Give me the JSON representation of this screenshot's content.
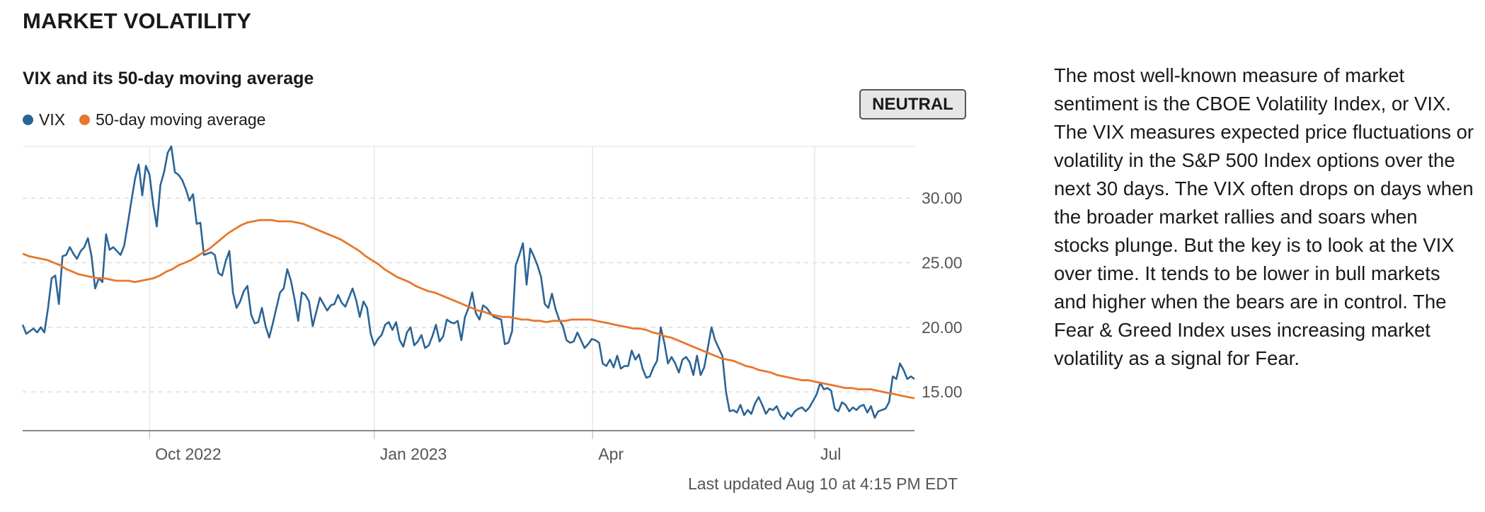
{
  "section_title": "MARKET VOLATILITY",
  "chart_title": "VIX and its 50-day moving average",
  "legend": [
    {
      "label": "VIX",
      "color": "#2b6496"
    },
    {
      "label": "50-day moving average",
      "color": "#e8772e"
    }
  ],
  "badge": "NEUTRAL",
  "last_updated": "Last updated Aug 10 at 4:15 PM EDT",
  "description": "The most well-known measure of market sentiment is the CBOE Volatility Index, or VIX. The VIX measures expected price fluctuations or volatility in the S&P 500 Index options over the next 30 days. The VIX often drops on days when the broader market rallies and soars when stocks plunge. But the key is to look at the VIX over time. It tends to be lower in bull markets and higher when the bears are in control. The Fear & Greed Index uses increasing market volatility as a signal for Fear.",
  "chart_data": {
    "type": "line",
    "x_ticks": [
      "Oct 2022",
      "Jan 2023",
      "Apr",
      "Jul"
    ],
    "y_ticks": [
      "15.00",
      "20.00",
      "25.00",
      "30.00"
    ],
    "y_tick_values": [
      15,
      20,
      25,
      30
    ],
    "ylim": [
      12,
      34
    ],
    "grid": true,
    "legend_placement": "top-left",
    "series": [
      {
        "name": "VIX",
        "color": "#2b6496",
        "values": [
          20.2,
          19.5,
          19.7,
          19.9,
          19.6,
          20.0,
          19.6,
          21.5,
          23.8,
          24.0,
          21.8,
          25.5,
          25.6,
          26.2,
          25.7,
          25.3,
          25.9,
          26.2,
          26.9,
          25.5,
          23.0,
          23.8,
          23.5,
          27.2,
          26.0,
          26.2,
          25.9,
          25.6,
          26.3,
          28.0,
          29.8,
          31.5,
          32.6,
          30.2,
          32.5,
          31.8,
          29.5,
          27.8,
          31.0,
          32.0,
          33.5,
          34.0,
          32.0,
          31.8,
          31.4,
          30.7,
          29.8,
          30.3,
          28.0,
          28.1,
          25.6,
          25.7,
          25.8,
          25.6,
          24.2,
          24.0,
          25.1,
          25.9,
          22.7,
          21.5,
          22.0,
          22.8,
          23.2,
          21.0,
          20.3,
          20.4,
          21.5,
          20.1,
          19.2,
          20.3,
          21.5,
          22.7,
          23.0,
          24.5,
          23.6,
          22.2,
          20.5,
          22.7,
          22.5,
          22.0,
          20.1,
          21.2,
          22.3,
          21.8,
          21.3,
          21.7,
          21.8,
          22.5,
          21.9,
          21.6,
          22.3,
          23.0,
          22.1,
          20.8,
          22.0,
          21.5,
          19.5,
          18.6,
          19.1,
          19.4,
          20.2,
          20.4,
          19.8,
          20.4,
          19.0,
          18.5,
          19.6,
          20.0,
          18.6,
          18.9,
          19.4,
          18.4,
          18.6,
          19.3,
          20.2,
          18.9,
          19.3,
          20.6,
          20.4,
          20.3,
          20.5,
          19.0,
          20.8,
          21.5,
          22.7,
          21.1,
          20.6,
          21.7,
          21.5,
          21.1,
          20.8,
          20.7,
          20.6,
          18.7,
          18.8,
          19.7,
          24.8,
          25.6,
          26.5,
          23.3,
          26.1,
          25.5,
          24.8,
          23.9,
          21.8,
          21.5,
          22.6,
          21.4,
          20.6,
          20.1,
          19.0,
          18.8,
          18.9,
          19.6,
          19.0,
          18.4,
          18.7,
          19.1,
          19.0,
          18.8,
          17.2,
          17.0,
          17.5,
          16.9,
          17.8,
          16.8,
          17.0,
          17.0,
          18.2,
          17.5,
          17.9,
          16.8,
          16.1,
          16.2,
          16.9,
          17.4,
          20.0,
          18.8,
          17.2,
          17.7,
          17.2,
          16.5,
          17.5,
          17.7,
          17.3,
          16.3,
          17.8,
          16.3,
          16.9,
          18.4,
          20.0,
          19.0,
          18.4,
          17.8,
          15.0,
          13.5,
          13.6,
          13.4,
          14.0,
          13.2,
          13.6,
          13.3,
          14.1,
          14.6,
          14.0,
          13.3,
          13.7,
          13.6,
          13.9,
          13.2,
          12.9,
          13.4,
          13.1,
          13.5,
          13.7,
          13.8,
          13.5,
          13.8,
          14.3,
          14.8,
          15.7,
          15.2,
          15.3,
          15.1,
          13.7,
          13.5,
          14.2,
          14.0,
          13.5,
          13.8,
          13.6,
          13.9,
          14.0,
          13.4,
          13.9,
          13.0,
          13.5,
          13.6,
          13.7,
          14.2,
          16.2,
          16.0,
          17.2,
          16.7,
          16.0,
          16.2,
          16.0
        ],
        "ma50": [
          25.7,
          25.5,
          25.4,
          25.3,
          25.2,
          25.0,
          24.8,
          24.5,
          24.3,
          24.1,
          24.0,
          23.9,
          23.8,
          23.8,
          23.7,
          23.6,
          23.6,
          23.6,
          23.5,
          23.6,
          23.7,
          23.8,
          24.0,
          24.3,
          24.5,
          24.8,
          25.0,
          25.2,
          25.5,
          25.8,
          26.1,
          26.5,
          26.9,
          27.3,
          27.6,
          27.9,
          28.1,
          28.2,
          28.3,
          28.3,
          28.3,
          28.2,
          28.2,
          28.2,
          28.1,
          28.0,
          27.8,
          27.6,
          27.4,
          27.2,
          27.0,
          26.8,
          26.5,
          26.2,
          25.9,
          25.5,
          25.2,
          24.9,
          24.5,
          24.2,
          23.9,
          23.7,
          23.5,
          23.2,
          23.0,
          22.8,
          22.7,
          22.5,
          22.3,
          22.1,
          21.9,
          21.7,
          21.5,
          21.3,
          21.2,
          21.0,
          20.9,
          20.8,
          20.8,
          20.7,
          20.6,
          20.6,
          20.5,
          20.5,
          20.4,
          20.5,
          20.5,
          20.5,
          20.6,
          20.6,
          20.6,
          20.6,
          20.5,
          20.4,
          20.3,
          20.2,
          20.1,
          20.0,
          19.9,
          19.9,
          19.8,
          19.6,
          19.5,
          19.3,
          19.2,
          19.0,
          18.8,
          18.6,
          18.4,
          18.2,
          18.0,
          17.8,
          17.6,
          17.5,
          17.4,
          17.2,
          17.0,
          16.9,
          16.7,
          16.6,
          16.5,
          16.3,
          16.2,
          16.1,
          16.0,
          15.9,
          15.9,
          15.8,
          15.7,
          15.6,
          15.5,
          15.4,
          15.3,
          15.3,
          15.2,
          15.2,
          15.2,
          15.1,
          15.0,
          14.9,
          14.8,
          14.7,
          14.6,
          14.5
        ]
      },
      {
        "name": "50-day moving average",
        "color": "#e8772e"
      }
    ]
  }
}
